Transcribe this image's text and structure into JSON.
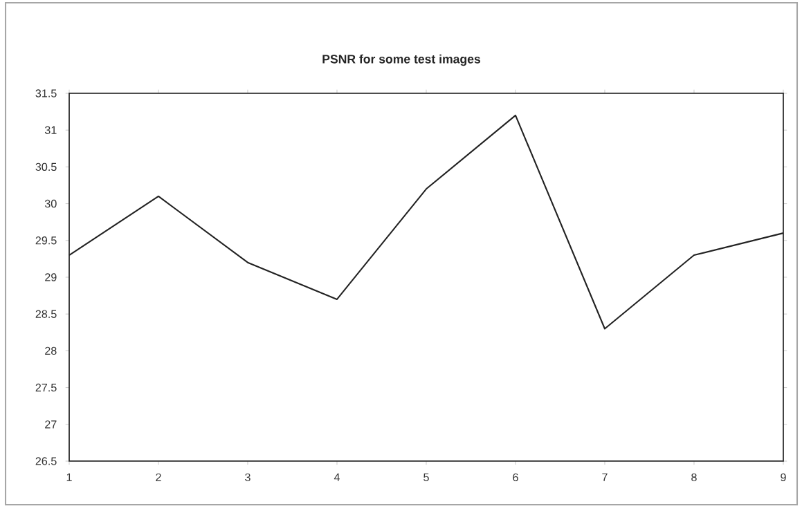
{
  "chart_data": {
    "type": "line",
    "title": "PSNR for some test images",
    "x": [
      1,
      2,
      3,
      4,
      5,
      6,
      7,
      8,
      9
    ],
    "series": [
      {
        "color": "#222222",
        "values": [
          29.3,
          30.1,
          29.2,
          28.7,
          30.2,
          31.2,
          28.3,
          29.3,
          29.6
        ]
      }
    ],
    "xlim": [
      1,
      9
    ],
    "xticks": [
      1,
      2,
      3,
      4,
      5,
      6,
      7,
      8,
      9
    ],
    "ylim": [
      26.5,
      31.5
    ],
    "yticks": [
      26.5,
      27,
      27.5,
      28,
      28.5,
      29,
      29.5,
      30,
      30.5,
      31,
      31.5
    ],
    "grid": false,
    "marker": "none",
    "line_style": "solid"
  }
}
